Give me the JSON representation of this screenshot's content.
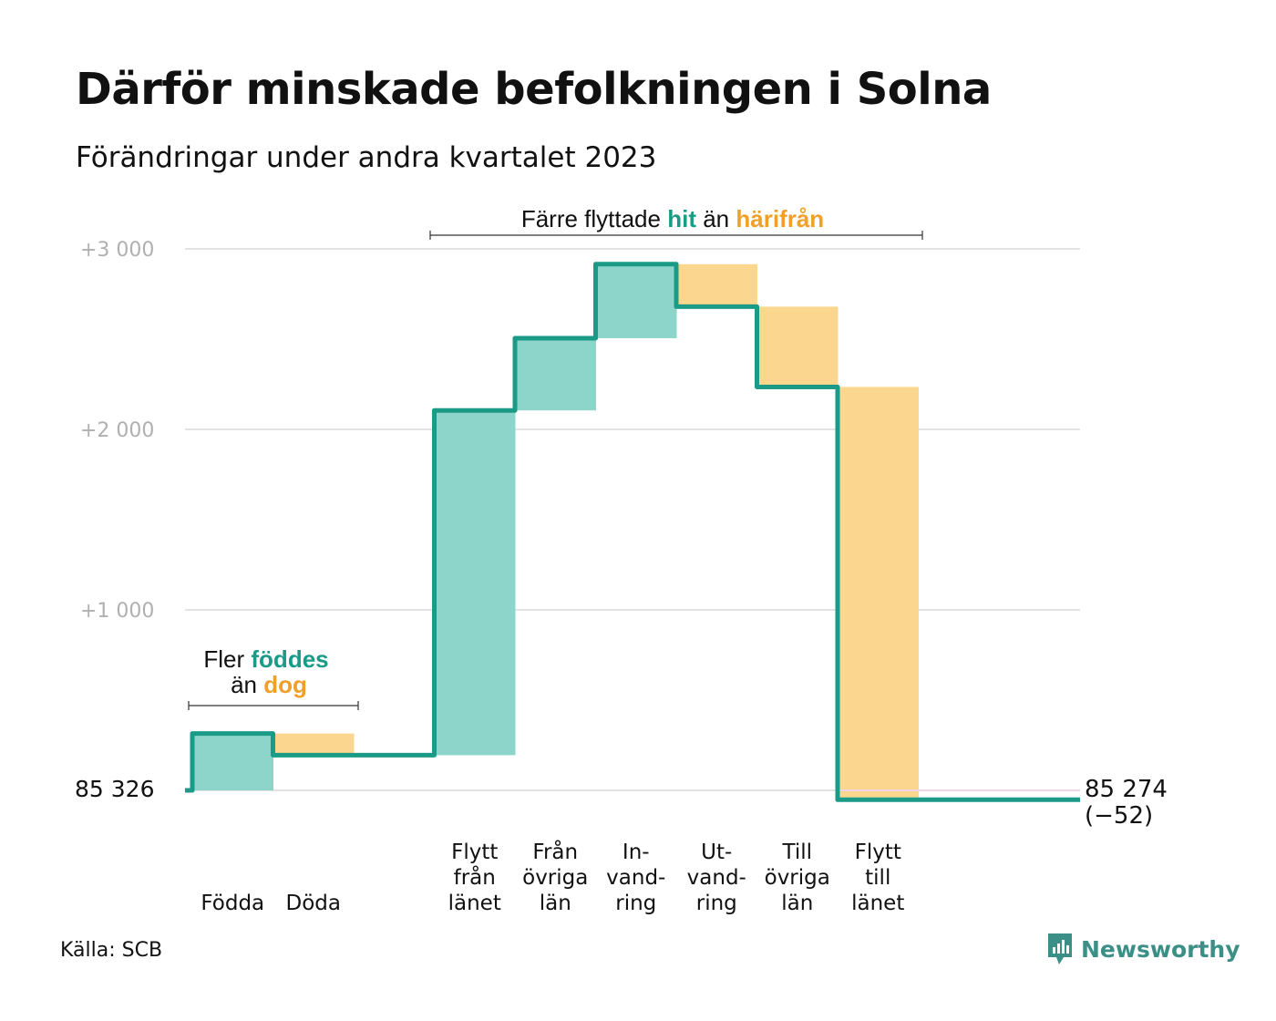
{
  "title": "Därför minskade befolkningen i Solna",
  "subtitle": "Förändringar under andra kvartalet 2023",
  "source": "Källa: SCB",
  "brand": "Newsworthy",
  "colors": {
    "teal": "#1a9a87",
    "teal_light": "#8dd5cb",
    "orange_light": "#fbd68f",
    "orange": "#f0a02a",
    "grid": "#e3e3e3"
  },
  "annotations": {
    "births": {
      "line1_pre": "Fler",
      "line1_em": "föddes",
      "line2_pre": "än",
      "line2_em": "dog"
    },
    "moves": {
      "pre": "Färre flyttade",
      "em1": "hit",
      "mid": "än",
      "em2": "härifrån"
    }
  },
  "chart_data": {
    "type": "waterfall",
    "title": "Därför minskade befolkningen i Solna",
    "subtitle": "Förändringar under andra kvartalet 2023",
    "baseline": 85326,
    "baseline_label": "85  326",
    "end_value_label": "85 274",
    "end_change_label": "(−52)",
    "y_ticks": [
      {
        "value": 0,
        "label": ""
      },
      {
        "value": 1000,
        "label": "+1   000"
      },
      {
        "value": 2000,
        "label": "+2   000"
      },
      {
        "value": 3000,
        "label": "+3   000"
      }
    ],
    "ylim": [
      -50,
      3000
    ],
    "steps": [
      {
        "lines": [
          "Födda"
        ],
        "change": 315,
        "kind": "in"
      },
      {
        "lines": [
          "Döda"
        ],
        "change": -120,
        "kind": "out"
      },
      {
        "lines": [],
        "change": 0,
        "kind": "gap"
      },
      {
        "lines": [
          "Flytt",
          "från",
          "länet"
        ],
        "change": 1910,
        "kind": "in"
      },
      {
        "lines": [
          "Från",
          "övriga",
          "län"
        ],
        "change": 400,
        "kind": "in"
      },
      {
        "lines": [
          "In-",
          "vand-",
          "ring"
        ],
        "change": 410,
        "kind": "in"
      },
      {
        "lines": [
          "Ut-",
          "vand-",
          "ring"
        ],
        "change": -235,
        "kind": "out"
      },
      {
        "lines": [
          "Till",
          "övriga",
          "län"
        ],
        "change": -445,
        "kind": "out"
      },
      {
        "lines": [
          "Flytt",
          "till",
          "länet"
        ],
        "change": -2287,
        "kind": "out"
      }
    ]
  }
}
